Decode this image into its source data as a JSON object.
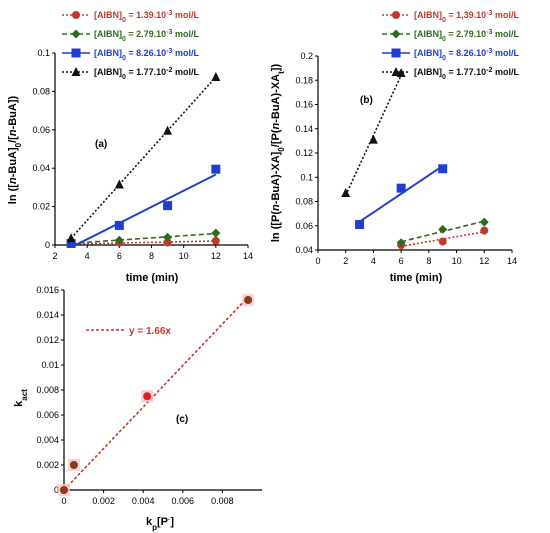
{
  "chart_data": [
    {
      "id": "a",
      "type": "scatter",
      "panel_label": "(a)",
      "xlabel": "time (min)",
      "ylabel": "ln ([n-BuA]0/[n-BuA])",
      "xlim": [
        2,
        14
      ],
      "ylim": [
        0,
        0.1
      ],
      "x_ticks": [
        "2",
        "4",
        "6",
        "8",
        "10",
        "12",
        "14"
      ],
      "y_ticks": [
        "0",
        "0.02",
        "0.04",
        "0.06",
        "0.08",
        "0.1"
      ],
      "legend_position": "top",
      "series": [
        {
          "name": "[AIBN]0 = 1.39.10-3 mol/L",
          "color": "#c0392b",
          "marker": "circle",
          "line": "dotted",
          "x": [
            3,
            6,
            9,
            12
          ],
          "y": [
            0.0005,
            0.0012,
            0.0013,
            0.0022
          ]
        },
        {
          "name": "[AIBN]0 = 2.79.10-3 mol/L",
          "color": "#2e6b1f",
          "marker": "diamond",
          "line": "dashed",
          "x": [
            3,
            6,
            9,
            12
          ],
          "y": [
            0.001,
            0.0025,
            0.004,
            0.0062
          ]
        },
        {
          "name": "[AIBN]0 = 8.26.10-3 mol/L",
          "color": "#1f3fd1",
          "marker": "square",
          "line": "solid",
          "x": [
            3,
            6,
            9,
            12
          ],
          "y": [
            0.0008,
            0.0102,
            0.0205,
            0.0395
          ]
        },
        {
          "name": "[AIBN]0 = 1.77.10-2 mol/L",
          "color": "#111111",
          "marker": "triangle",
          "line": "dotted",
          "x": [
            3,
            6,
            9,
            12
          ],
          "y": [
            0.0035,
            0.0315,
            0.0595,
            0.0875
          ]
        }
      ]
    },
    {
      "id": "b",
      "type": "scatter",
      "panel_label": "(b)",
      "xlabel": "time (min)",
      "ylabel": "ln ([P(n-BuA)-XA]0/[P(n-BuA)-XA])",
      "xlim": [
        0,
        14
      ],
      "ylim": [
        0.04,
        0.2
      ],
      "x_ticks": [
        "0",
        "2",
        "4",
        "6",
        "8",
        "10",
        "12",
        "14"
      ],
      "y_ticks": [
        "0.04",
        "0.06",
        "0.08",
        "0.1",
        "0.12",
        "0.14",
        "0.16",
        "0.18",
        "0.2"
      ],
      "legend_position": "top-right",
      "series": [
        {
          "name": "[AIBN]0 = 1,39.10-3 mol/L",
          "color": "#c0392b",
          "marker": "circle",
          "line": "dotted",
          "x": [
            6,
            9,
            12
          ],
          "y": [
            0.044,
            0.047,
            0.056
          ]
        },
        {
          "name": "[AIBN]0 = 2.79.10-3 mol/L",
          "color": "#2e6b1f",
          "marker": "diamond",
          "line": "dashed",
          "x": [
            6,
            9,
            12
          ],
          "y": [
            0.046,
            0.057,
            0.063
          ]
        },
        {
          "name": "[AIBN]0 = 8.26.10-3 mol/L",
          "color": "#1f3fd1",
          "marker": "square",
          "line": "solid",
          "x": [
            3,
            6,
            9
          ],
          "y": [
            0.061,
            0.091,
            0.107
          ]
        },
        {
          "name": "[AIBN]0 = 1.77.10-2 mol/L",
          "color": "#111111",
          "marker": "triangle",
          "line": "dotted",
          "x": [
            2,
            4,
            6
          ],
          "y": [
            0.087,
            0.131,
            0.186
          ]
        }
      ]
    },
    {
      "id": "c",
      "type": "scatter",
      "panel_label": "(c)",
      "xlabel": "kp[P·]",
      "ylabel": "kact",
      "xlim": [
        0,
        0.01
      ],
      "ylim": [
        0,
        0.016
      ],
      "x_ticks": [
        "0",
        "0.002",
        "0.004",
        "0.006",
        "0.008"
      ],
      "y_ticks": [
        "0",
        "0.002",
        "0.004",
        "0.006",
        "0.008",
        "0.01",
        "0.012",
        "0.014",
        "0.016"
      ],
      "fit_label": "y = 1.66x",
      "fit_slope": 1.66,
      "fit_color": "#c0392b",
      "series": [
        {
          "name": "",
          "color": "#8b3a1a",
          "marker": "circle",
          "x": [
            0,
            0.0005,
            0.0042,
            0.0093
          ],
          "y": [
            0,
            0.002,
            0.0075,
            0.0152
          ]
        }
      ]
    }
  ]
}
